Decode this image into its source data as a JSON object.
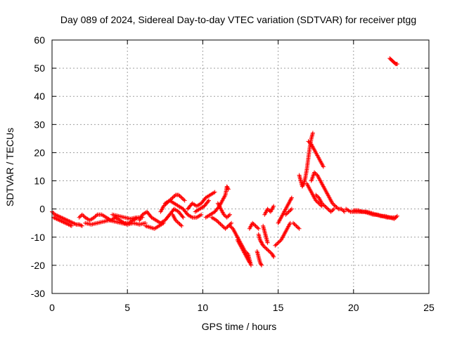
{
  "chart_data": {
    "type": "scatter",
    "title": "Day 089 of 2024, Sidereal Day-to-day VTEC variation (SDTVAR) for receiver ptgg",
    "xlabel": "GPS time / hours",
    "ylabel": "SDTVAR / TECUs",
    "xlim": [
      0,
      25
    ],
    "ylim": [
      -30,
      60
    ],
    "xticks": [
      0,
      5,
      10,
      15,
      20,
      25
    ],
    "xtick_labels": [
      "0",
      "5",
      "10",
      "15",
      "20",
      "25"
    ],
    "yticks": [
      -30,
      -20,
      -10,
      0,
      10,
      20,
      30,
      40,
      50,
      60
    ],
    "ytick_labels": [
      "-30",
      "-20",
      "-10",
      "0",
      "10",
      "20",
      "30",
      "40",
      "50",
      "60"
    ],
    "grid": true,
    "marker": "+",
    "series": [
      {
        "name": "SDTVAR",
        "color": "#ff0000",
        "segments": [
          [
            [
              0.0,
              -1
            ],
            [
              0.2,
              -2
            ],
            [
              0.4,
              -2.5
            ],
            [
              0.6,
              -3
            ],
            [
              0.8,
              -3.5
            ],
            [
              1.0,
              -4
            ],
            [
              1.2,
              -4.5
            ],
            [
              1.4,
              -5
            ],
            [
              1.6,
              -5.5
            ],
            [
              1.8,
              -5.5
            ],
            [
              2.0,
              -6
            ]
          ],
          [
            [
              0.1,
              -3
            ],
            [
              0.3,
              -3.5
            ],
            [
              0.5,
              -4
            ],
            [
              0.7,
              -4.5
            ],
            [
              0.9,
              -5
            ],
            [
              1.1,
              -5.5
            ],
            [
              1.3,
              -6
            ]
          ],
          [
            [
              1.8,
              -3
            ],
            [
              2.0,
              -2
            ],
            [
              2.2,
              -3
            ],
            [
              2.5,
              -4
            ],
            [
              2.8,
              -3
            ],
            [
              3.0,
              -2
            ],
            [
              3.3,
              -2
            ],
            [
              3.6,
              -3
            ],
            [
              3.9,
              -4
            ],
            [
              4.2,
              -3
            ],
            [
              4.5,
              -4
            ],
            [
              4.8,
              -5
            ],
            [
              5.1,
              -5
            ],
            [
              5.4,
              -4
            ],
            [
              5.7,
              -3
            ],
            [
              6.0,
              -3
            ]
          ],
          [
            [
              2.2,
              -5
            ],
            [
              2.6,
              -5.5
            ],
            [
              3.0,
              -5
            ],
            [
              3.4,
              -4.5
            ],
            [
              3.8,
              -4
            ],
            [
              4.2,
              -4.5
            ],
            [
              4.6,
              -5
            ],
            [
              5.0,
              -5.5
            ],
            [
              5.4,
              -5
            ],
            [
              5.8,
              -5.5
            ],
            [
              6.2,
              -5
            ]
          ],
          [
            [
              4.0,
              -2
            ],
            [
              4.4,
              -2.5
            ],
            [
              4.8,
              -3
            ],
            [
              5.2,
              -3.5
            ],
            [
              5.6,
              -3
            ]
          ],
          [
            [
              5.8,
              -4
            ],
            [
              6.0,
              -2
            ],
            [
              6.3,
              -1
            ],
            [
              6.6,
              -3
            ],
            [
              6.9,
              -4
            ],
            [
              7.2,
              -5
            ],
            [
              7.5,
              -4
            ],
            [
              7.8,
              -2
            ],
            [
              8.1,
              0
            ],
            [
              8.4,
              -1
            ],
            [
              8.7,
              -3
            ]
          ],
          [
            [
              6.2,
              -6
            ],
            [
              6.5,
              -6.5
            ],
            [
              6.8,
              -7
            ],
            [
              7.1,
              -6
            ],
            [
              7.4,
              -5
            ]
          ],
          [
            [
              7.2,
              -1
            ],
            [
              7.4,
              1
            ],
            [
              7.6,
              2
            ],
            [
              7.8,
              3
            ],
            [
              8.0,
              4
            ],
            [
              8.2,
              5
            ],
            [
              8.4,
              5
            ],
            [
              8.6,
              4
            ],
            [
              8.8,
              3
            ]
          ],
          [
            [
              7.5,
              2
            ],
            [
              7.8,
              3
            ],
            [
              8.1,
              2
            ],
            [
              8.4,
              1
            ],
            [
              8.7,
              0
            ],
            [
              9.0,
              -2
            ],
            [
              9.3,
              -3
            ],
            [
              9.6,
              -3
            ],
            [
              9.9,
              -2
            ]
          ],
          [
            [
              8.0,
              -2
            ],
            [
              8.2,
              -4
            ],
            [
              8.4,
              -5
            ],
            [
              8.6,
              -6
            ]
          ],
          [
            [
              9.0,
              0
            ],
            [
              9.3,
              2
            ],
            [
              9.6,
              1
            ],
            [
              9.9,
              2
            ],
            [
              10.2,
              4
            ],
            [
              10.5,
              5
            ],
            [
              10.8,
              6
            ]
          ],
          [
            [
              9.5,
              -1
            ],
            [
              9.8,
              0
            ],
            [
              10.1,
              1
            ],
            [
              10.4,
              3
            ]
          ],
          [
            [
              10.2,
              -3
            ],
            [
              10.5,
              -2
            ],
            [
              10.8,
              -1
            ],
            [
              11.1,
              1
            ],
            [
              11.3,
              3
            ],
            [
              11.5,
              5
            ],
            [
              11.6,
              8
            ],
            [
              11.7,
              7
            ]
          ],
          [
            [
              10.6,
              -3
            ],
            [
              10.9,
              -4
            ],
            [
              11.1,
              -5
            ],
            [
              11.3,
              -6
            ],
            [
              11.5,
              -7
            ],
            [
              11.7,
              -6
            ],
            [
              11.9,
              -5
            ]
          ],
          [
            [
              11.0,
              2
            ],
            [
              11.2,
              0
            ],
            [
              11.4,
              -2
            ],
            [
              11.6,
              -3
            ],
            [
              11.8,
              -2
            ]
          ],
          [
            [
              11.8,
              -6
            ],
            [
              12.0,
              -7
            ],
            [
              12.2,
              -9
            ],
            [
              12.4,
              -11
            ],
            [
              12.6,
              -13
            ],
            [
              12.8,
              -15
            ],
            [
              13.0,
              -16
            ],
            [
              13.1,
              -18
            ],
            [
              13.2,
              -20
            ]
          ],
          [
            [
              12.3,
              -11
            ],
            [
              12.5,
              -13
            ],
            [
              12.7,
              -15
            ],
            [
              12.9,
              -17
            ],
            [
              13.1,
              -19
            ]
          ],
          [
            [
              13.1,
              -7
            ],
            [
              13.3,
              -5
            ],
            [
              13.5,
              -6
            ],
            [
              13.7,
              -7
            ]
          ],
          [
            [
              13.7,
              -9
            ],
            [
              13.8,
              -11
            ],
            [
              13.9,
              -12
            ],
            [
              14.0,
              -13
            ],
            [
              14.2,
              -14
            ],
            [
              14.4,
              -15
            ],
            [
              14.6,
              -16
            ],
            [
              14.7,
              -17
            ]
          ],
          [
            [
              14.0,
              -6
            ],
            [
              14.1,
              -8
            ],
            [
              14.2,
              -10
            ],
            [
              14.3,
              -12
            ]
          ],
          [
            [
              13.6,
              -15
            ],
            [
              13.7,
              -17
            ],
            [
              13.8,
              -19
            ],
            [
              13.9,
              -20
            ]
          ],
          [
            [
              14.1,
              -2
            ],
            [
              14.3,
              0
            ],
            [
              14.5,
              -1
            ],
            [
              14.7,
              1
            ]
          ],
          [
            [
              14.8,
              -13
            ],
            [
              15.0,
              -12
            ],
            [
              15.2,
              -11
            ],
            [
              15.4,
              -9
            ],
            [
              15.6,
              -7
            ],
            [
              15.8,
              -5
            ]
          ],
          [
            [
              15.0,
              -5
            ],
            [
              15.2,
              -3
            ],
            [
              15.4,
              -1
            ],
            [
              15.6,
              1
            ],
            [
              15.8,
              3
            ],
            [
              15.9,
              4
            ]
          ],
          [
            [
              15.5,
              -2
            ],
            [
              15.7,
              -1
            ],
            [
              15.9,
              0
            ]
          ],
          [
            [
              16.0,
              -5
            ],
            [
              16.2,
              -6
            ],
            [
              16.4,
              -7
            ]
          ],
          [
            [
              16.4,
              12
            ],
            [
              16.5,
              10
            ],
            [
              16.6,
              8
            ],
            [
              16.7,
              9
            ],
            [
              16.8,
              11
            ],
            [
              16.9,
              14
            ],
            [
              17.0,
              18
            ],
            [
              17.1,
              22
            ],
            [
              17.2,
              25
            ],
            [
              17.3,
              27
            ]
          ],
          [
            [
              17.0,
              24
            ],
            [
              17.2,
              23
            ],
            [
              17.4,
              21
            ],
            [
              17.6,
              19
            ],
            [
              17.8,
              17
            ],
            [
              18.0,
              15
            ]
          ],
          [
            [
              16.9,
              9
            ],
            [
              17.1,
              7
            ],
            [
              17.3,
              5
            ],
            [
              17.5,
              3
            ],
            [
              17.7,
              2
            ],
            [
              17.9,
              1
            ]
          ],
          [
            [
              17.2,
              10
            ],
            [
              17.4,
              13
            ],
            [
              17.6,
              12
            ],
            [
              17.8,
              10
            ],
            [
              18.0,
              8
            ],
            [
              18.2,
              6
            ],
            [
              18.4,
              4
            ],
            [
              18.6,
              2
            ],
            [
              18.8,
              1
            ],
            [
              19.0,
              0
            ],
            [
              19.2,
              0
            ],
            [
              19.4,
              -1
            ]
          ],
          [
            [
              17.5,
              5
            ],
            [
              17.7,
              4
            ],
            [
              17.9,
              2
            ],
            [
              18.1,
              1
            ],
            [
              18.3,
              0
            ],
            [
              18.5,
              -1
            ],
            [
              18.7,
              0
            ]
          ],
          [
            [
              19.5,
              0
            ],
            [
              19.8,
              -1
            ],
            [
              20.1,
              -1
            ],
            [
              20.4,
              -1
            ],
            [
              20.7,
              -1
            ],
            [
              21.0,
              -1.5
            ],
            [
              21.3,
              -2
            ],
            [
              21.6,
              -2
            ],
            [
              21.9,
              -2.5
            ],
            [
              22.2,
              -3
            ],
            [
              22.5,
              -3
            ],
            [
              22.8,
              -3
            ]
          ],
          [
            [
              20.0,
              -0.5
            ],
            [
              20.3,
              -0.5
            ],
            [
              20.6,
              -1
            ],
            [
              20.9,
              -1
            ],
            [
              21.2,
              -1.5
            ],
            [
              21.5,
              -2
            ],
            [
              21.8,
              -2.5
            ],
            [
              22.1,
              -2.5
            ],
            [
              22.4,
              -3
            ],
            [
              22.7,
              -3.5
            ],
            [
              22.9,
              -2.5
            ]
          ],
          [
            [
              22.4,
              53.5
            ],
            [
              22.5,
              53
            ],
            [
              22.6,
              52.5
            ],
            [
              22.7,
              52
            ],
            [
              22.8,
              51.5
            ],
            [
              22.9,
              51.5
            ]
          ]
        ]
      }
    ]
  }
}
